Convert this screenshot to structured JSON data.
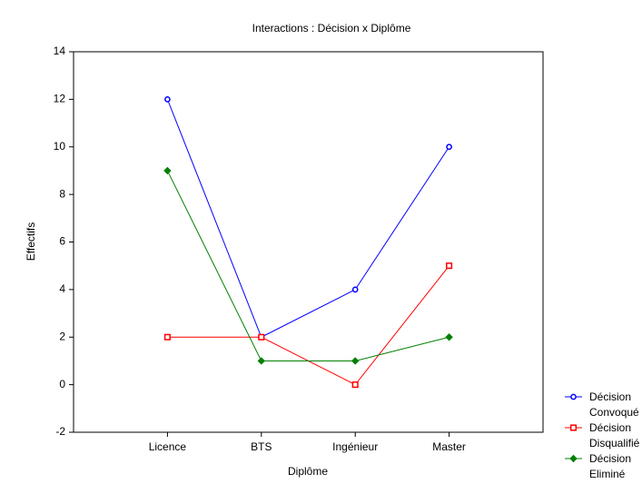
{
  "chart_data": {
    "type": "line",
    "title": "Interactions : Décision x Diplôme",
    "xlabel": "Diplôme",
    "ylabel": "Effectifs",
    "categories": [
      "Licence",
      "BTS",
      "Ingénieur",
      "Master"
    ],
    "series": [
      {
        "name": "Décision Convoqué",
        "color": "#0000ff",
        "marker": "circle",
        "values": [
          12,
          2,
          4,
          10
        ]
      },
      {
        "name": "Décision Disqualifié",
        "color": "#ff0000",
        "marker": "square",
        "values": [
          2,
          2,
          0,
          5
        ]
      },
      {
        "name": "Décision Eliminé",
        "color": "#008000",
        "marker": "diamond",
        "values": [
          9,
          1,
          1,
          2
        ]
      }
    ],
    "ylim": [
      -2,
      14
    ],
    "yticks": [
      -2,
      0,
      2,
      4,
      6,
      8,
      10,
      12,
      14
    ],
    "grid": false,
    "legend": "bottom-right"
  }
}
